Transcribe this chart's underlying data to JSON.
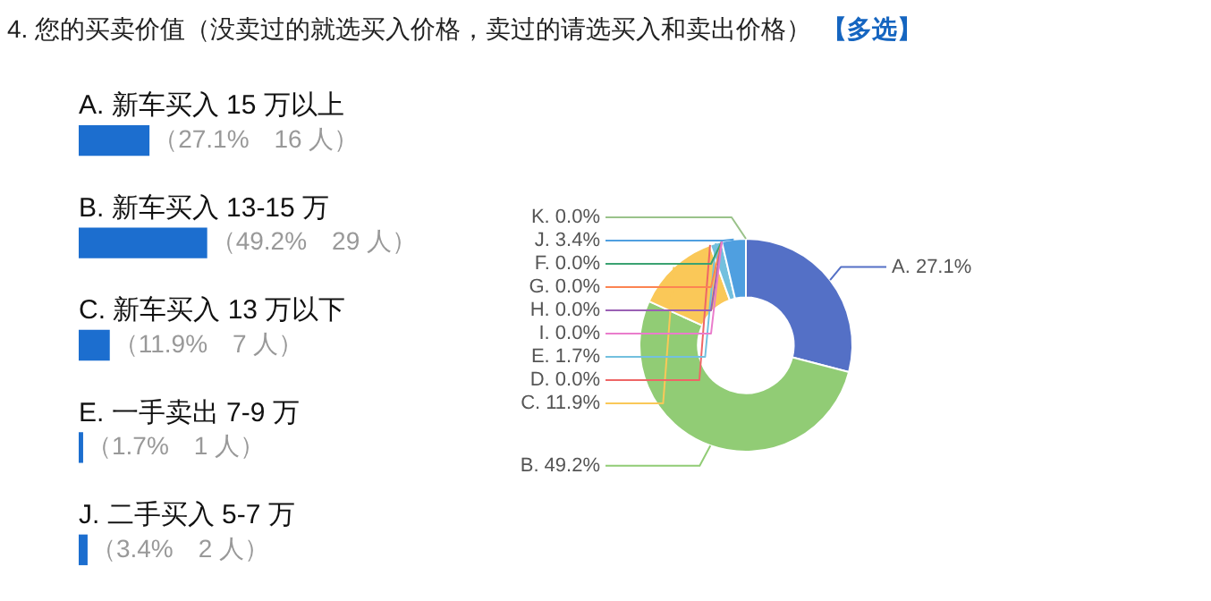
{
  "chart_data": [
    {
      "type": "bar",
      "orientation": "horizontal",
      "title": "4. 您的买卖价值（没卖过的就选买入价格，卖过的请选买入和卖出价格）",
      "categories": [
        "A. 新车买入 15 万以上",
        "B. 新车买入 13-15 万",
        "C. 新车买入 13 万以下",
        "E. 一手卖出 7-9 万",
        "J. 二手买入 5-7 万"
      ],
      "values": [
        27.1,
        49.2,
        11.9,
        1.7,
        3.4
      ],
      "color": "#1c6ecf",
      "value_labels": [
        "（27.1%　16 人）",
        "（49.2%　29 人）",
        "（11.9%　7 人）",
        "（1.7%　1 人）",
        "（3.4%　2 人）"
      ],
      "tick_labels": false
    },
    {
      "type": "donut",
      "subtitle": "【多选】",
      "categories": [
        "A.",
        "B.",
        "C.",
        "D.",
        "E.",
        "F.",
        "G.",
        "H.",
        "I.",
        "J.",
        "K."
      ],
      "values": [
        27.1,
        49.2,
        11.9,
        0,
        1.7,
        0,
        0,
        0,
        0,
        3.4,
        0
      ],
      "colors": [
        "#5470c6",
        "#91cc75",
        "#fac858",
        "#ee6666",
        "#73c0de",
        "#3ba272",
        "#fc8452",
        "#9a60b4",
        "#ea7ccc",
        "#4f9fe0",
        "#9ac28a"
      ],
      "value_labels": [
        "27.1%",
        "49.2%",
        "11.9%",
        "0.0%",
        "1.7%",
        "0.0%",
        "0.0%",
        "0.0%",
        "0.0%",
        "3.4%",
        "0.0%"
      ]
    }
  ]
}
